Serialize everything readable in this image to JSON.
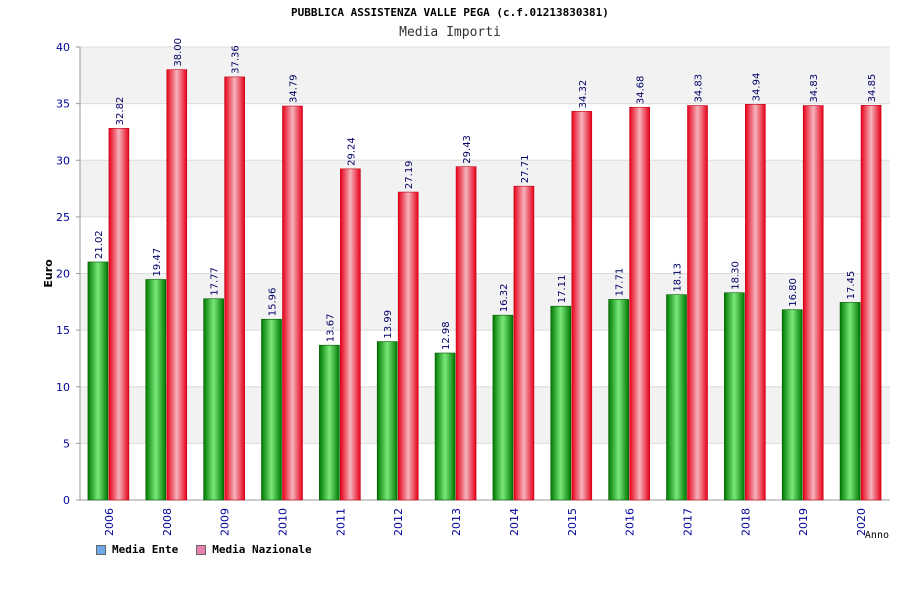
{
  "chart_data": {
    "type": "bar",
    "title": "PUBBLICA ASSISTENZA VALLE PEGA (c.f.01213830381)",
    "subtitle": "Media Importi",
    "xlabel": "Anno",
    "ylabel": "Euro",
    "ylim": [
      0,
      40
    ],
    "yticks": [
      0,
      5,
      10,
      15,
      20,
      25,
      30,
      35,
      40
    ],
    "categories": [
      "2006",
      "2008",
      "2009",
      "2010",
      "2011",
      "2012",
      "2013",
      "2014",
      "2015",
      "2016",
      "2017",
      "2018",
      "2019",
      "2020"
    ],
    "series": [
      {
        "name": "Media Ente",
        "values": [
          21.02,
          19.47,
          17.77,
          15.96,
          13.67,
          13.99,
          12.98,
          16.32,
          17.11,
          17.71,
          18.13,
          18.3,
          16.8,
          17.45
        ],
        "labels": [
          "21.02",
          "19.47",
          "17.77",
          "15.96",
          "13.67",
          "13.99",
          "12.98",
          "16.32",
          "17.11",
          "17.71",
          "18.13",
          "18.30",
          "16.80",
          "17.45"
        ],
        "color": "#00b000",
        "legend_color": "#6fa8e8"
      },
      {
        "name": "Media Nazionale",
        "values": [
          32.82,
          38.0,
          37.36,
          34.79,
          29.24,
          27.19,
          29.43,
          27.71,
          34.32,
          34.68,
          34.83,
          34.94,
          34.83,
          34.85
        ],
        "labels": [
          "32.82",
          "38.00",
          "37.36",
          "34.79",
          "29.24",
          "27.19",
          "29.43",
          "27.71",
          "34.32",
          "34.68",
          "34.83",
          "34.94",
          "34.83",
          "34.85"
        ],
        "color": "#e8202e",
        "legend_color": "#e880b0"
      }
    ],
    "grid": true,
    "legend_position": "bottom-left"
  }
}
